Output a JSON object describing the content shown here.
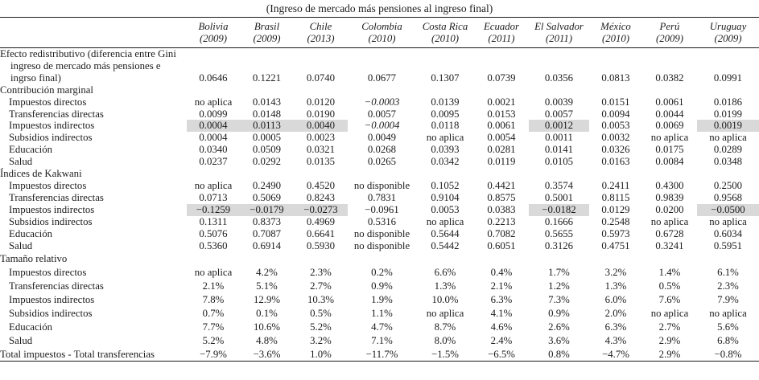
{
  "table": {
    "title": "(Ingreso de mercado más pensiones al ingreso final)",
    "columns": [
      {
        "country": "Bolivia",
        "year": "(2009)"
      },
      {
        "country": "Brasil",
        "year": "(2009)"
      },
      {
        "country": "Chile",
        "year": "(2013)"
      },
      {
        "country": "Colombia",
        "year": "(2010)"
      },
      {
        "country": "Costa Rica",
        "year": "(2010)"
      },
      {
        "country": "Ecuador",
        "year": "(2011)"
      },
      {
        "country": "El Salvador",
        "year": "(2011)"
      },
      {
        "country": "México",
        "year": "(2010)"
      },
      {
        "country": "Perú",
        "year": "(2009)"
      },
      {
        "country": "Uruguay",
        "year": "(2009)"
      }
    ],
    "highlight_color": "#d9d9d9",
    "rows": [
      {
        "type": "data",
        "hang": true,
        "vbottom": true,
        "label": "Efecto redistributivo (diferencia entre Gini ingreso de mercado más pensiones e ingrso final)",
        "values": [
          "0.0646",
          "0.1221",
          "0.0740",
          "0.0677",
          "0.1307",
          "0.0739",
          "0.0356",
          "0.0813",
          "0.0382",
          "0.0991"
        ]
      },
      {
        "type": "section",
        "label": "Contribución marginal"
      },
      {
        "type": "data",
        "indent": true,
        "label": "Impuestos directos",
        "values": [
          "no aplica",
          "0.0143",
          "0.0120",
          {
            "t": "−0.0003",
            "it": true
          },
          "0.0139",
          "0.0021",
          "0.0039",
          "0.0151",
          "0.0061",
          "0.0186"
        ]
      },
      {
        "type": "data",
        "indent": true,
        "label": "Transferencias directas",
        "values": [
          "0.0099",
          "0.0148",
          "0.0190",
          "0.0057",
          "0.0095",
          "0.0153",
          "0.0057",
          "0.0094",
          "0.0044",
          "0.0199"
        ]
      },
      {
        "type": "data",
        "indent": true,
        "label": "Impuestos indirectos",
        "values": [
          {
            "t": "0.0004",
            "hl": true
          },
          {
            "t": "0.0113",
            "hl": true
          },
          {
            "t": "0.0040",
            "hl": true
          },
          {
            "t": "−0.0004",
            "it": true
          },
          "0.0118",
          "0.0061",
          {
            "t": "0.0012",
            "hl": true
          },
          "0.0053",
          "0.0069",
          {
            "t": "0.0019",
            "hl": true
          }
        ]
      },
      {
        "type": "data",
        "indent": true,
        "label": "Subsidios indirectos",
        "values": [
          "0.0004",
          "0.0005",
          "0.0023",
          "0.0049",
          "no aplica",
          "0.0054",
          "0.0011",
          "0.0032",
          "no aplica",
          "no aplica"
        ]
      },
      {
        "type": "data",
        "indent": true,
        "label": "Educación",
        "values": [
          "0.0340",
          "0.0509",
          "0.0321",
          "0.0268",
          "0.0393",
          "0.0281",
          "0.0141",
          "0.0326",
          "0.0175",
          "0.0289"
        ]
      },
      {
        "type": "data",
        "indent": true,
        "label": "Salud",
        "values": [
          "0.0237",
          "0.0292",
          "0.0135",
          "0.0265",
          "0.0342",
          "0.0119",
          "0.0105",
          "0.0163",
          "0.0084",
          "0.0348"
        ]
      },
      {
        "type": "section",
        "label": "Índices de Kakwani"
      },
      {
        "type": "data",
        "indent": true,
        "label": "Impuestos directos",
        "values": [
          "no aplica",
          "0.2490",
          "0.4520",
          "no disponible",
          "0.1052",
          "0.4421",
          "0.3574",
          "0.2411",
          "0.4300",
          "0.2500"
        ]
      },
      {
        "type": "data",
        "indent": true,
        "label": "Transferencias directas",
        "values": [
          "0.0713",
          "0.5069",
          "0.8243",
          "0.7831",
          "0.9104",
          "0.8575",
          "0.5001",
          "0.8115",
          "0.9839",
          "0.9568"
        ]
      },
      {
        "type": "data",
        "indent": true,
        "label": "Impuestos indirectos",
        "values": [
          {
            "t": "−0.1259",
            "hl": true
          },
          {
            "t": "−0.0179",
            "hl": true
          },
          {
            "t": "−0.0273",
            "hl": true
          },
          "−0.0961",
          "0.0053",
          "0.0383",
          {
            "t": "−0.0182",
            "hl": true
          },
          "0.0129",
          "0.0200",
          {
            "t": "−0.0500",
            "hl": true
          }
        ]
      },
      {
        "type": "data",
        "indent": true,
        "label": "Subsidios indirectos",
        "values": [
          "0.1311",
          "0.8373",
          "0.4969",
          "0.5316",
          "no aplica",
          "0.2213",
          "0.1666",
          "0.2548",
          "no aplica",
          "no aplica"
        ]
      },
      {
        "type": "data",
        "indent": true,
        "label": "Educación",
        "values": [
          "0.5076",
          "0.7087",
          "0.6641",
          "no disponible",
          "0.5644",
          "0.7082",
          "0.5655",
          "0.5973",
          "0.6728",
          "0.6034"
        ]
      },
      {
        "type": "data",
        "indent": true,
        "label": "Salud",
        "values": [
          "0.5360",
          "0.6914",
          "0.5930",
          "no disponible",
          "0.5442",
          "0.6051",
          "0.3126",
          "0.4751",
          "0.3241",
          "0.5951"
        ]
      },
      {
        "type": "section",
        "label": "Tamaño relativo",
        "taller": true
      },
      {
        "type": "data",
        "indent": true,
        "taller": true,
        "label": "Impuestos directos",
        "values": [
          "no aplica",
          "4.2%",
          "2.3%",
          "0.2%",
          "6.6%",
          "0.4%",
          "1.7%",
          "3.2%",
          "1.4%",
          "6.1%"
        ]
      },
      {
        "type": "data",
        "indent": true,
        "taller": true,
        "label": "Transferencias directas",
        "values": [
          "2.1%",
          "5.1%",
          "2.7%",
          "0.9%",
          "1.3%",
          "2.1%",
          "1.2%",
          "1.3%",
          "0.5%",
          "2.3%"
        ]
      },
      {
        "type": "data",
        "indent": true,
        "taller": true,
        "label": "Impuestos indirectos",
        "values": [
          "7.8%",
          "12.9%",
          "10.3%",
          "1.9%",
          "10.0%",
          "6.3%",
          "7.3%",
          "6.0%",
          "7.6%",
          "7.9%"
        ]
      },
      {
        "type": "data",
        "indent": true,
        "taller": true,
        "label": "Subsidios indirectos",
        "values": [
          "0.7%",
          "0.1%",
          "0.5%",
          "1.1%",
          "no aplica",
          "4.1%",
          "0.9%",
          "2.0%",
          "no aplica",
          "no aplica"
        ]
      },
      {
        "type": "data",
        "indent": true,
        "taller": true,
        "label": "Educación",
        "values": [
          "7.7%",
          "10.6%",
          "5.2%",
          "4.7%",
          "8.7%",
          "4.6%",
          "2.6%",
          "6.3%",
          "2.7%",
          "5.6%"
        ]
      },
      {
        "type": "data",
        "indent": true,
        "taller": true,
        "label": "Salud",
        "values": [
          "5.2%",
          "4.8%",
          "3.2%",
          "7.1%",
          "8.0%",
          "2.4%",
          "3.6%",
          "4.3%",
          "2.9%",
          "6.8%"
        ]
      },
      {
        "type": "total",
        "taller": true,
        "label": "Total impuestos - Total transferencias",
        "values": [
          "−7.9%",
          "−3.6%",
          "1.0%",
          "−11.7%",
          "−1.5%",
          "−6.5%",
          "0.8%",
          "−4.7%",
          "2.9%",
          "−0.8%"
        ]
      }
    ]
  }
}
